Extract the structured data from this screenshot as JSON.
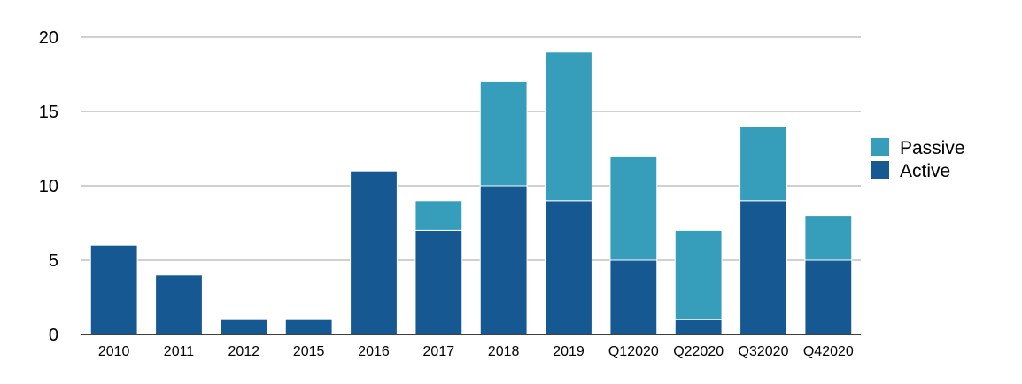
{
  "chart_data": {
    "type": "bar",
    "stacked": true,
    "title": "",
    "xlabel": "",
    "ylabel": "",
    "categories": [
      "2010",
      "2011",
      "2012",
      "2015",
      "2016",
      "2017",
      "2018",
      "2019",
      "Q12020",
      "Q22020",
      "Q32020",
      "Q42020"
    ],
    "series": [
      {
        "name": "Active",
        "color": "#155892",
        "values": [
          6,
          4,
          1,
          1,
          11,
          7,
          10,
          9,
          5,
          1,
          9,
          5
        ]
      },
      {
        "name": "Passive",
        "color": "#369dba",
        "values": [
          0,
          0,
          0,
          0,
          0,
          2,
          7,
          10,
          7,
          6,
          5,
          3
        ]
      }
    ],
    "ylim": [
      0,
      20
    ],
    "yticks": [
      "0",
      "5",
      "10",
      "15",
      "20"
    ],
    "grid": true,
    "legend": {
      "placement": "right",
      "items": [
        "Passive",
        "Active"
      ]
    },
    "colors": {
      "grid": "#c0c0c0",
      "axis": "#000000",
      "bar_outline": "#ffffff"
    }
  }
}
